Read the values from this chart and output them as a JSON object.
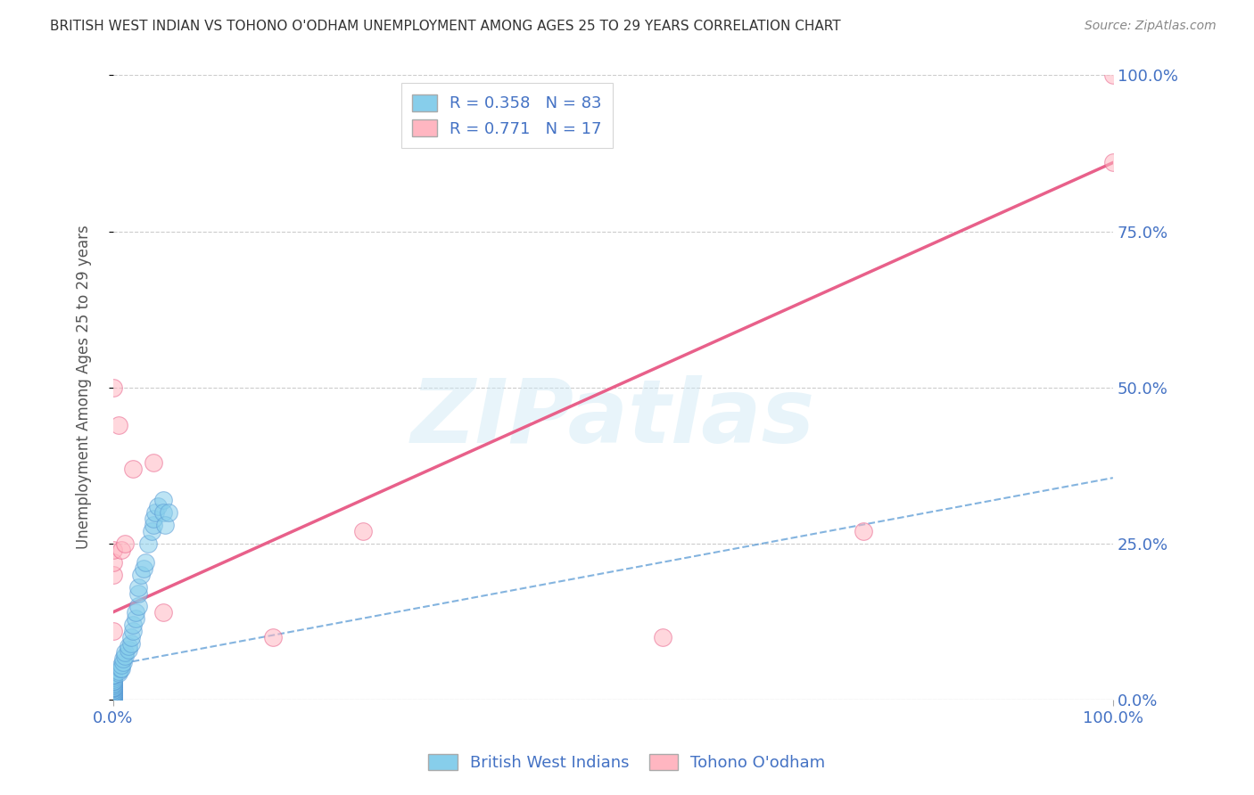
{
  "title": "BRITISH WEST INDIAN VS TOHONO O'ODHAM UNEMPLOYMENT AMONG AGES 25 TO 29 YEARS CORRELATION CHART",
  "source": "Source: ZipAtlas.com",
  "ylabel": "Unemployment Among Ages 25 to 29 years",
  "watermark": "ZIPatlas",
  "R_blue": 0.358,
  "N_blue": 83,
  "R_pink": 0.771,
  "N_pink": 17,
  "blue_color": "#87CEEB",
  "pink_color": "#FFB6C1",
  "blue_edge_color": "#5B9BD5",
  "pink_edge_color": "#E8608A",
  "blue_line_color": "#5B9BD5",
  "pink_line_color": "#E8608A",
  "axis_label_color": "#4472C4",
  "title_color": "#333333",
  "grid_color": "#cccccc",
  "xlim": [
    0,
    1
  ],
  "ylim": [
    0,
    1
  ],
  "xtick_labels": [
    "0.0%",
    "100.0%"
  ],
  "ytick_labels": [
    "0.0%",
    "25.0%",
    "50.0%",
    "75.0%",
    "100.0%"
  ],
  "ytick_values": [
    0.0,
    0.25,
    0.5,
    0.75,
    1.0
  ],
  "blue_scatter_x": [
    0.0,
    0.0,
    0.0,
    0.0,
    0.0,
    0.0,
    0.0,
    0.0,
    0.0,
    0.0,
    0.0,
    0.0,
    0.0,
    0.0,
    0.0,
    0.0,
    0.0,
    0.0,
    0.0,
    0.0,
    0.0,
    0.0,
    0.0,
    0.0,
    0.0,
    0.0,
    0.0,
    0.0,
    0.0,
    0.0,
    0.0,
    0.0,
    0.0,
    0.0,
    0.0,
    0.0,
    0.0,
    0.0,
    0.0,
    0.0,
    0.0,
    0.0,
    0.0,
    0.0,
    0.0,
    0.0,
    0.0,
    0.0,
    0.0,
    0.0,
    0.005,
    0.005,
    0.007,
    0.008,
    0.008,
    0.01,
    0.01,
    0.012,
    0.012,
    0.015,
    0.015,
    0.018,
    0.018,
    0.02,
    0.02,
    0.022,
    0.022,
    0.025,
    0.025,
    0.025,
    0.028,
    0.03,
    0.032,
    0.035,
    0.038,
    0.04,
    0.04,
    0.042,
    0.045,
    0.05,
    0.05,
    0.052,
    0.055
  ],
  "blue_scatter_y": [
    0.0,
    0.0,
    0.0,
    0.0,
    0.0,
    0.0,
    0.0,
    0.0,
    0.0,
    0.0,
    0.0,
    0.0,
    0.0,
    0.0,
    0.0,
    0.0,
    0.0,
    0.005,
    0.005,
    0.007,
    0.008,
    0.008,
    0.01,
    0.01,
    0.01,
    0.012,
    0.012,
    0.012,
    0.015,
    0.015,
    0.015,
    0.018,
    0.018,
    0.018,
    0.02,
    0.02,
    0.02,
    0.022,
    0.022,
    0.025,
    0.025,
    0.025,
    0.028,
    0.03,
    0.03,
    0.032,
    0.035,
    0.038,
    0.04,
    0.04,
    0.042,
    0.045,
    0.05,
    0.05,
    0.055,
    0.06,
    0.065,
    0.07,
    0.075,
    0.08,
    0.085,
    0.09,
    0.1,
    0.11,
    0.12,
    0.13,
    0.14,
    0.15,
    0.17,
    0.18,
    0.2,
    0.21,
    0.22,
    0.25,
    0.27,
    0.28,
    0.29,
    0.3,
    0.31,
    0.32,
    0.3,
    0.28,
    0.3
  ],
  "pink_scatter_x": [
    0.0,
    0.0,
    0.0,
    0.0,
    0.005,
    0.008,
    0.012,
    0.02,
    0.04,
    0.05,
    0.16,
    0.25,
    0.55,
    0.75,
    1.0,
    1.0,
    0.0
  ],
  "pink_scatter_y": [
    0.2,
    0.22,
    0.24,
    0.5,
    0.44,
    0.24,
    0.25,
    0.37,
    0.38,
    0.14,
    0.1,
    0.27,
    0.1,
    0.27,
    0.86,
    1.0,
    0.11
  ],
  "blue_trend_intercept": 0.055,
  "blue_trend_slope": 0.3,
  "pink_trend_intercept": 0.14,
  "pink_trend_slope": 0.72,
  "background_color": "#ffffff"
}
